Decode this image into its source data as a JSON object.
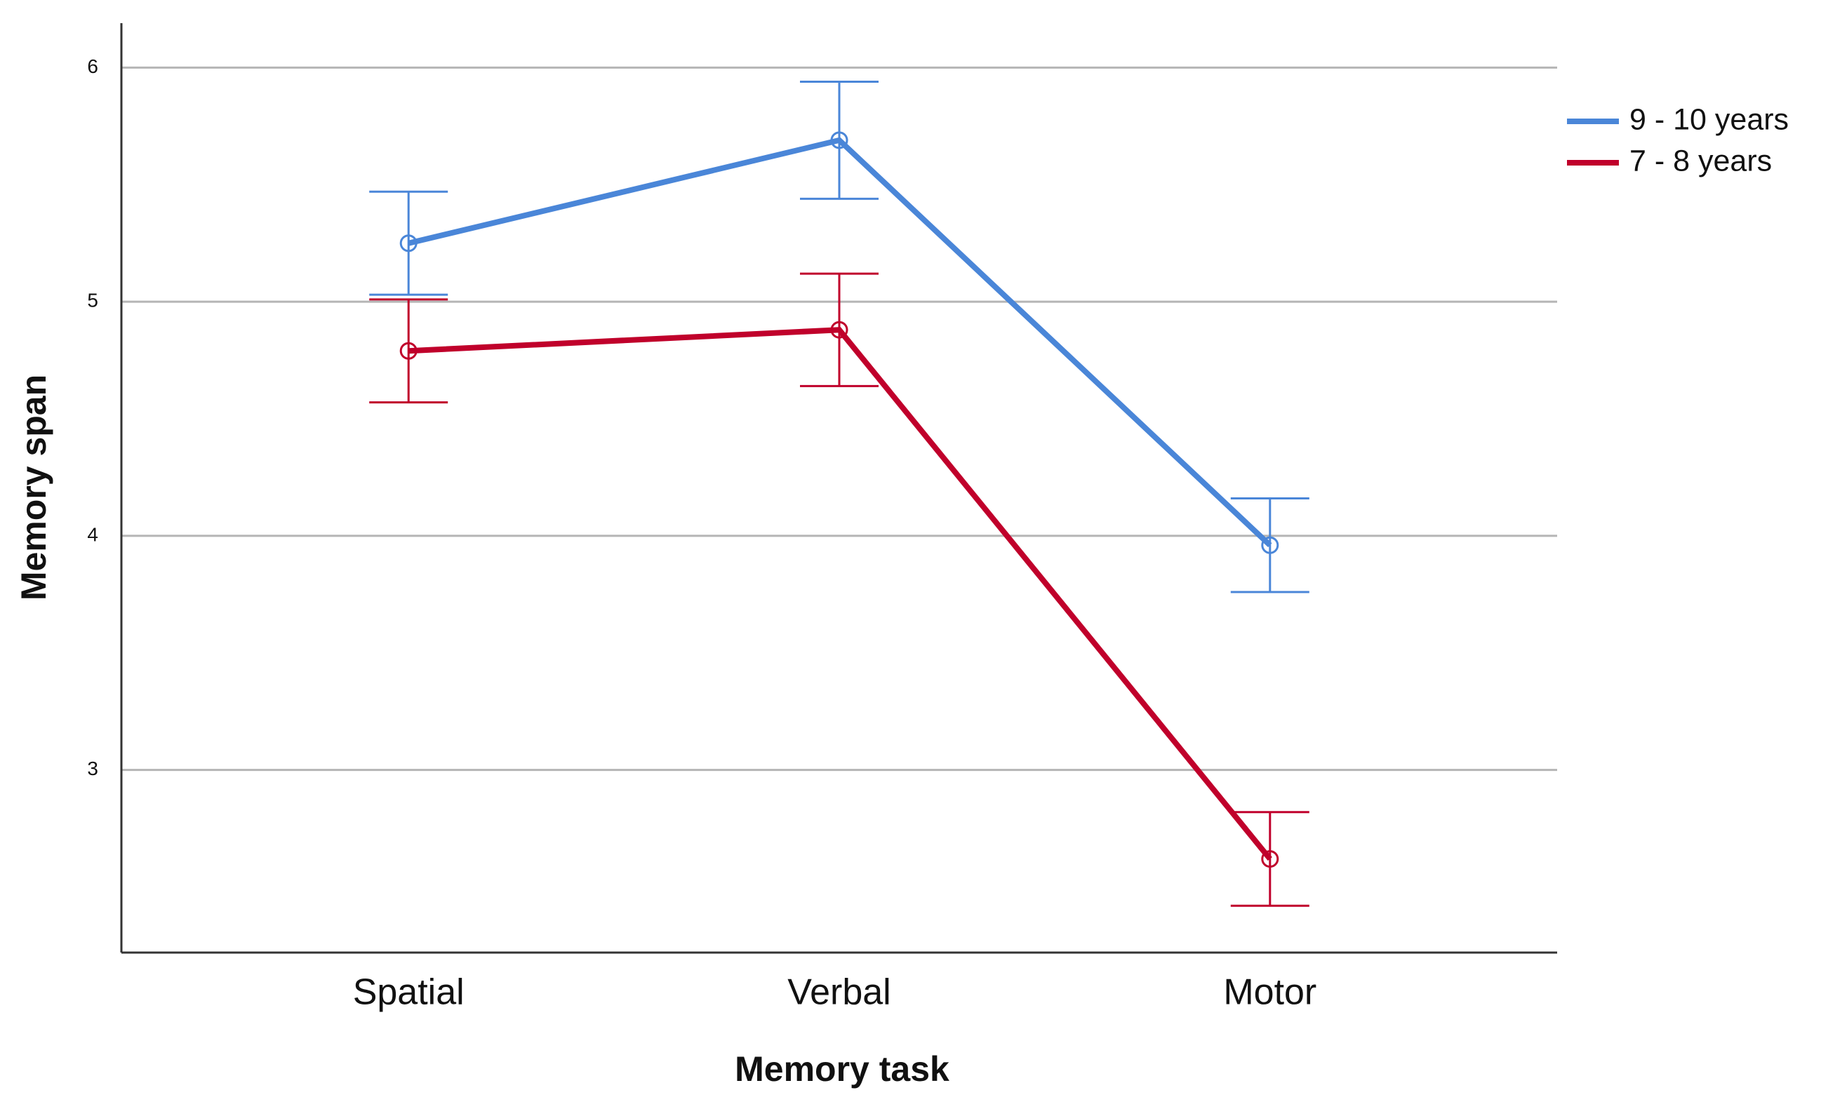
{
  "chart_data": {
    "type": "line",
    "x_label": "Memory task",
    "y_label": "Memory span",
    "categories": [
      "Spatial",
      "Verbal",
      "Motor"
    ],
    "series": [
      {
        "name": "9 - 10 years",
        "color": "#4a86d8",
        "values": [
          5.25,
          5.69,
          3.96
        ],
        "errors": [
          0.22,
          0.25,
          0.2
        ]
      },
      {
        "name": "7 - 8 years",
        "color": "#c0002b",
        "values": [
          4.79,
          4.88,
          2.62
        ],
        "errors": [
          0.22,
          0.24,
          0.2
        ]
      }
    ],
    "ylim": [
      2.22,
      6.19
    ],
    "yticks": [
      3,
      4,
      5,
      6
    ],
    "grid": true,
    "legend": "right"
  }
}
